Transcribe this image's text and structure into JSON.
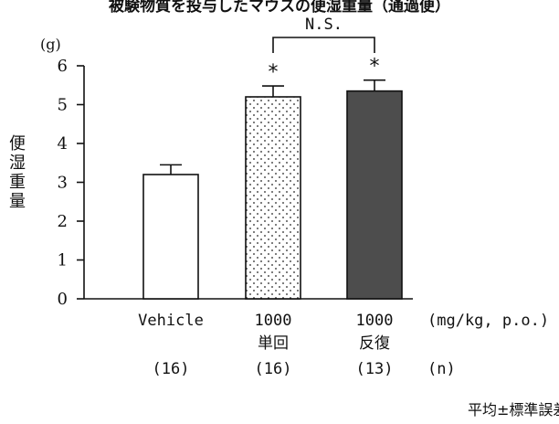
{
  "chart_data": {
    "type": "bar",
    "top_caption": "被験物質を投与したマウスの便湿重量（通過便）",
    "y_unit": "(g)",
    "ylabel": "便湿重量",
    "ylim": [
      0,
      6
    ],
    "yticks": [
      "0",
      "1",
      "2",
      "3",
      "4",
      "5",
      "6"
    ],
    "categories": [
      {
        "line1": "Vehicle",
        "line2": "",
        "n": "(16)"
      },
      {
        "line1": "1000",
        "line2": "単回",
        "n": "(16)"
      },
      {
        "line1": "1000",
        "line2": "反復",
        "n": "(13)"
      }
    ],
    "values": [
      3.2,
      5.2,
      5.35
    ],
    "errors": [
      0.25,
      0.28,
      0.28
    ],
    "fills": [
      "white",
      "dotted",
      "#4d4d4d"
    ],
    "significance_marks": [
      "",
      "*",
      "*"
    ],
    "comparison_label": "N.S.",
    "dose_unit_label": "(mg/kg, p.o.)",
    "n_label": "(n)",
    "footnote": "平均±標準誤差"
  }
}
